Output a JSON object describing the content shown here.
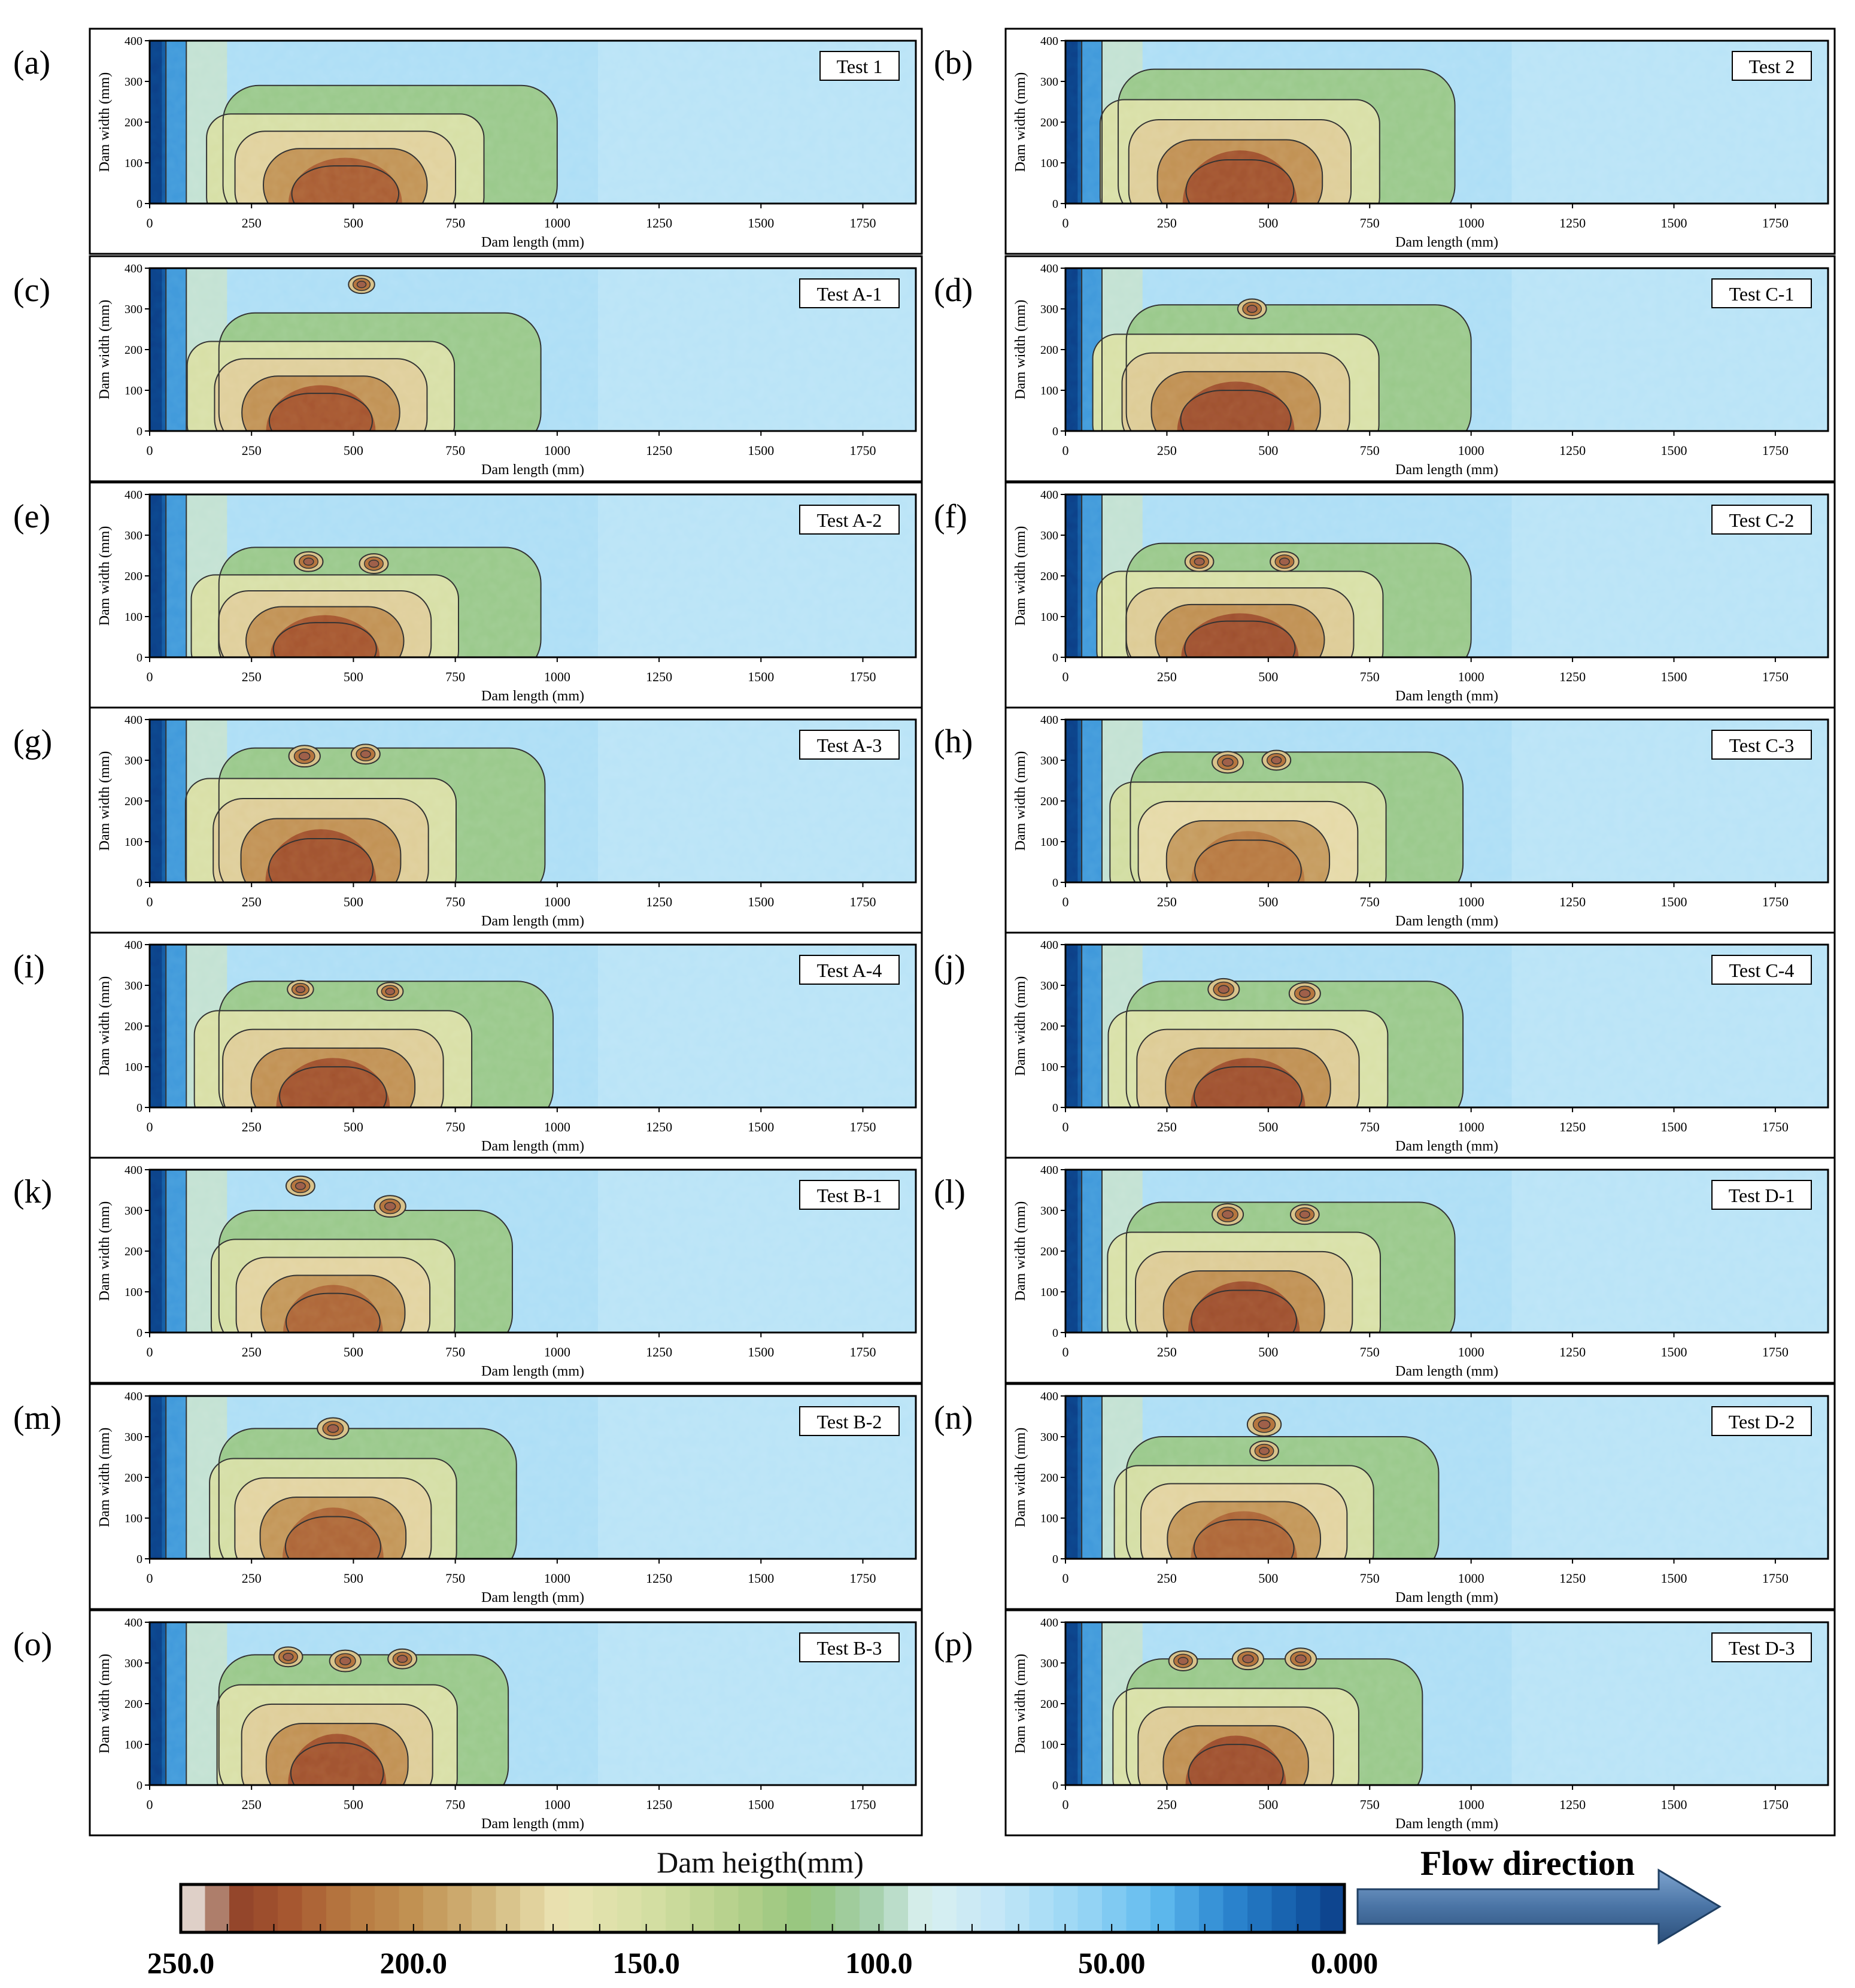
{
  "figure": {
    "colorbar": {
      "title": "Dam heigth(mm)",
      "tick_labels": [
        "250.0",
        "200.0",
        "150.0",
        "100.0",
        "50.00",
        "0.000"
      ],
      "tick_values": [
        250,
        200,
        150,
        100,
        50,
        0
      ],
      "range": [
        250,
        0
      ],
      "stops": [
        {
          "v": 250,
          "color": "#ffffff"
        },
        {
          "v": 245,
          "color": "#c1a596"
        },
        {
          "v": 238,
          "color": "#92452b"
        },
        {
          "v": 228,
          "color": "#a4532e"
        },
        {
          "v": 215,
          "color": "#b6763f"
        },
        {
          "v": 200,
          "color": "#c19253"
        },
        {
          "v": 185,
          "color": "#d1b57a"
        },
        {
          "v": 168,
          "color": "#ebe4b3"
        },
        {
          "v": 150,
          "color": "#d6dfa4"
        },
        {
          "v": 130,
          "color": "#b3d08a"
        },
        {
          "v": 115,
          "color": "#94c57e"
        },
        {
          "v": 100,
          "color": "#a9d2b4"
        },
        {
          "v": 90,
          "color": "#daf0f0"
        },
        {
          "v": 75,
          "color": "#c4e7f7"
        },
        {
          "v": 55,
          "color": "#94d4f4"
        },
        {
          "v": 40,
          "color": "#5fbaee"
        },
        {
          "v": 25,
          "color": "#2c86d0"
        },
        {
          "v": 10,
          "color": "#145ca8"
        },
        {
          "v": 0,
          "color": "#0c3d86"
        }
      ]
    },
    "flow_direction": {
      "label": "Flow direction",
      "color": "#4a74a5"
    }
  },
  "chart_data": [
    {
      "type": "heatmap",
      "panel": "(a)",
      "title": "Test 1",
      "xlabel": "Dam length (mm)",
      "ylabel": "Dam width (mm)",
      "xlim": [
        0,
        1880
      ],
      "ylim": [
        0,
        400
      ],
      "x_ticks": [
        0,
        250,
        500,
        750,
        1000,
        1250,
        1500,
        1750
      ],
      "y_ticks": [
        0,
        100,
        200,
        300,
        400
      ],
      "mound": {
        "x_start": 180,
        "x_end": 1000,
        "width_extent": 250,
        "peak_height": 225,
        "peak_x": 480
      },
      "bumps": [],
      "notes": "Contour map of dam height over the dam surface"
    },
    {
      "type": "heatmap",
      "panel": "(b)",
      "title": "Test 2",
      "xlabel": "Dam length (mm)",
      "ylabel": "Dam width (mm)",
      "xlim": [
        0,
        1880
      ],
      "ylim": [
        0,
        400
      ],
      "x_ticks": [
        0,
        250,
        500,
        750,
        1000,
        1250,
        1500,
        1750
      ],
      "y_ticks": [
        0,
        100,
        200,
        300,
        400
      ],
      "mound": {
        "x_start": 130,
        "x_end": 960,
        "width_extent": 290,
        "peak_height": 230,
        "peak_x": 430
      },
      "bumps": []
    },
    {
      "type": "heatmap",
      "panel": "(c)",
      "title": "Test A-1",
      "xlabel": "Dam length (mm)",
      "ylabel": "Dam width (mm)",
      "xlim": [
        0,
        1880
      ],
      "ylim": [
        0,
        400
      ],
      "x_ticks": [
        0,
        250,
        500,
        750,
        1000,
        1250,
        1500,
        1750
      ],
      "y_ticks": [
        0,
        100,
        200,
        300,
        400
      ],
      "mound": {
        "x_start": 170,
        "x_end": 960,
        "width_extent": 250,
        "peak_height": 228,
        "peak_x": 420
      },
      "bumps": [
        {
          "x": 520,
          "y": 360,
          "r": 20
        }
      ]
    },
    {
      "type": "heatmap",
      "panel": "(d)",
      "title": "Test C-1",
      "xlabel": "Dam length (mm)",
      "ylabel": "Dam width (mm)",
      "xlim": [
        0,
        1880
      ],
      "ylim": [
        0,
        400
      ],
      "x_ticks": [
        0,
        250,
        500,
        750,
        1000,
        1250,
        1500,
        1750
      ],
      "y_ticks": [
        0,
        100,
        200,
        300,
        400
      ],
      "mound": {
        "x_start": 150,
        "x_end": 1000,
        "width_extent": 270,
        "peak_height": 232,
        "peak_x": 420
      },
      "bumps": [
        {
          "x": 460,
          "y": 300,
          "r": 22
        }
      ]
    },
    {
      "type": "heatmap",
      "panel": "(e)",
      "title": "Test A-2",
      "xlabel": "Dam length (mm)",
      "ylabel": "Dam width (mm)",
      "xlim": [
        0,
        1880
      ],
      "ylim": [
        0,
        400
      ],
      "x_ticks": [
        0,
        250,
        500,
        750,
        1000,
        1250,
        1500,
        1750
      ],
      "y_ticks": [
        0,
        100,
        200,
        300,
        400
      ],
      "mound": {
        "x_start": 170,
        "x_end": 960,
        "width_extent": 230,
        "peak_height": 228,
        "peak_x": 430
      },
      "bumps": [
        {
          "x": 390,
          "y": 235,
          "r": 22
        },
        {
          "x": 550,
          "y": 230,
          "r": 22
        }
      ]
    },
    {
      "type": "heatmap",
      "panel": "(f)",
      "title": "Test C-2",
      "xlabel": "Dam length (mm)",
      "ylabel": "Dam width (mm)",
      "xlim": [
        0,
        1880
      ],
      "ylim": [
        0,
        400
      ],
      "x_ticks": [
        0,
        250,
        500,
        750,
        1000,
        1250,
        1500,
        1750
      ],
      "y_ticks": [
        0,
        100,
        200,
        300,
        400
      ],
      "mound": {
        "x_start": 150,
        "x_end": 1000,
        "width_extent": 240,
        "peak_height": 232,
        "peak_x": 430
      },
      "bumps": [
        {
          "x": 330,
          "y": 235,
          "r": 22
        },
        {
          "x": 540,
          "y": 235,
          "r": 22
        }
      ]
    },
    {
      "type": "heatmap",
      "panel": "(g)",
      "title": "Test A-3",
      "xlabel": "Dam length (mm)",
      "ylabel": "Dam width (mm)",
      "xlim": [
        0,
        1880
      ],
      "ylim": [
        0,
        400
      ],
      "x_ticks": [
        0,
        250,
        500,
        750,
        1000,
        1250,
        1500,
        1750
      ],
      "y_ticks": [
        0,
        100,
        200,
        300,
        400
      ],
      "mound": {
        "x_start": 170,
        "x_end": 970,
        "width_extent": 290,
        "peak_height": 230,
        "peak_x": 420
      },
      "bumps": [
        {
          "x": 380,
          "y": 310,
          "r": 24
        },
        {
          "x": 530,
          "y": 315,
          "r": 22
        }
      ]
    },
    {
      "type": "heatmap",
      "panel": "(h)",
      "title": "Test C-3",
      "xlabel": "Dam length (mm)",
      "ylabel": "Dam width (mm)",
      "xlim": [
        0,
        1880
      ],
      "ylim": [
        0,
        400
      ],
      "x_ticks": [
        0,
        250,
        500,
        750,
        1000,
        1250,
        1500,
        1750
      ],
      "y_ticks": [
        0,
        100,
        200,
        300,
        400
      ],
      "mound": {
        "x_start": 160,
        "x_end": 980,
        "width_extent": 280,
        "peak_height": 215,
        "peak_x": 450
      },
      "bumps": [
        {
          "x": 400,
          "y": 295,
          "r": 24
        },
        {
          "x": 520,
          "y": 300,
          "r": 22
        }
      ]
    },
    {
      "type": "heatmap",
      "panel": "(i)",
      "title": "Test A-4",
      "xlabel": "Dam length (mm)",
      "ylabel": "Dam width (mm)",
      "xlim": [
        0,
        1880
      ],
      "ylim": [
        0,
        400
      ],
      "x_ticks": [
        0,
        250,
        500,
        750,
        1000,
        1250,
        1500,
        1750
      ],
      "y_ticks": [
        0,
        100,
        200,
        300,
        400
      ],
      "mound": {
        "x_start": 170,
        "x_end": 990,
        "width_extent": 270,
        "peak_height": 230,
        "peak_x": 450
      },
      "bumps": [
        {
          "x": 370,
          "y": 290,
          "r": 20
        },
        {
          "x": 590,
          "y": 285,
          "r": 20
        }
      ]
    },
    {
      "type": "heatmap",
      "panel": "(j)",
      "title": "Test C-4",
      "xlabel": "Dam length (mm)",
      "ylabel": "Dam width (mm)",
      "xlim": [
        0,
        1880
      ],
      "ylim": [
        0,
        400
      ],
      "x_ticks": [
        0,
        250,
        500,
        750,
        1000,
        1250,
        1500,
        1750
      ],
      "y_ticks": [
        0,
        100,
        200,
        300,
        400
      ],
      "mound": {
        "x_start": 150,
        "x_end": 980,
        "width_extent": 270,
        "peak_height": 232,
        "peak_x": 450
      },
      "bumps": [
        {
          "x": 390,
          "y": 290,
          "r": 24
        },
        {
          "x": 590,
          "y": 280,
          "r": 24
        }
      ]
    },
    {
      "type": "heatmap",
      "panel": "(k)",
      "title": "Test B-1",
      "xlabel": "Dam length (mm)",
      "ylabel": "Dam width (mm)",
      "xlim": [
        0,
        1880
      ],
      "ylim": [
        0,
        400
      ],
      "x_ticks": [
        0,
        250,
        500,
        750,
        1000,
        1250,
        1500,
        1750
      ],
      "y_ticks": [
        0,
        100,
        200,
        300,
        400
      ],
      "mound": {
        "x_start": 170,
        "x_end": 890,
        "width_extent": 260,
        "peak_height": 222,
        "peak_x": 450
      },
      "bumps": [
        {
          "x": 370,
          "y": 360,
          "r": 22
        },
        {
          "x": 590,
          "y": 310,
          "r": 24
        }
      ]
    },
    {
      "type": "heatmap",
      "panel": "(l)",
      "title": "Test D-1",
      "xlabel": "Dam length (mm)",
      "ylabel": "Dam width (mm)",
      "xlim": [
        0,
        1880
      ],
      "ylim": [
        0,
        400
      ],
      "x_ticks": [
        0,
        250,
        500,
        750,
        1000,
        1250,
        1500,
        1750
      ],
      "y_ticks": [
        0,
        100,
        200,
        300,
        400
      ],
      "mound": {
        "x_start": 150,
        "x_end": 960,
        "width_extent": 280,
        "peak_height": 232,
        "peak_x": 440
      },
      "bumps": [
        {
          "x": 400,
          "y": 290,
          "r": 24
        },
        {
          "x": 590,
          "y": 290,
          "r": 22
        }
      ]
    },
    {
      "type": "heatmap",
      "panel": "(m)",
      "title": "Test B-2",
      "xlabel": "Dam length (mm)",
      "ylabel": "Dam width (mm)",
      "xlim": [
        0,
        1880
      ],
      "ylim": [
        0,
        400
      ],
      "x_ticks": [
        0,
        250,
        500,
        750,
        1000,
        1250,
        1500,
        1750
      ],
      "y_ticks": [
        0,
        100,
        200,
        300,
        400
      ],
      "mound": {
        "x_start": 170,
        "x_end": 900,
        "width_extent": 280,
        "peak_height": 222,
        "peak_x": 450
      },
      "bumps": [
        {
          "x": 450,
          "y": 320,
          "r": 24
        }
      ]
    },
    {
      "type": "heatmap",
      "panel": "(n)",
      "title": "Test D-2",
      "xlabel": "Dam length (mm)",
      "ylabel": "Dam width (mm)",
      "xlim": [
        0,
        1880
      ],
      "ylim": [
        0,
        400
      ],
      "x_ticks": [
        0,
        250,
        500,
        750,
        1000,
        1250,
        1500,
        1750
      ],
      "y_ticks": [
        0,
        100,
        200,
        300,
        400
      ],
      "mound": {
        "x_start": 150,
        "x_end": 920,
        "width_extent": 260,
        "peak_height": 222,
        "peak_x": 440
      },
      "bumps": [
        {
          "x": 490,
          "y": 330,
          "r": 26
        },
        {
          "x": 490,
          "y": 265,
          "r": 22
        }
      ]
    },
    {
      "type": "heatmap",
      "panel": "(o)",
      "title": "Test B-3",
      "xlabel": "Dam length (mm)",
      "ylabel": "Dam width (mm)",
      "xlim": [
        0,
        1880
      ],
      "ylim": [
        0,
        400
      ],
      "x_ticks": [
        0,
        250,
        500,
        750,
        1000,
        1250,
        1500,
        1750
      ],
      "y_ticks": [
        0,
        100,
        200,
        300,
        400
      ],
      "mound": {
        "x_start": 170,
        "x_end": 880,
        "width_extent": 280,
        "peak_height": 230,
        "peak_x": 460
      },
      "bumps": [
        {
          "x": 340,
          "y": 315,
          "r": 22
        },
        {
          "x": 480,
          "y": 305,
          "r": 24
        },
        {
          "x": 620,
          "y": 310,
          "r": 22
        }
      ]
    },
    {
      "type": "heatmap",
      "panel": "(p)",
      "title": "Test D-3",
      "xlabel": "Dam length (mm)",
      "ylabel": "Dam width (mm)",
      "xlim": [
        0,
        1880
      ],
      "ylim": [
        0,
        400
      ],
      "x_ticks": [
        0,
        250,
        500,
        750,
        1000,
        1250,
        1500,
        1750
      ],
      "y_ticks": [
        0,
        100,
        200,
        300,
        400
      ],
      "mound": {
        "x_start": 150,
        "x_end": 880,
        "width_extent": 270,
        "peak_height": 232,
        "peak_x": 420
      },
      "bumps": [
        {
          "x": 290,
          "y": 305,
          "r": 22
        },
        {
          "x": 450,
          "y": 310,
          "r": 24
        },
        {
          "x": 580,
          "y": 310,
          "r": 24
        }
      ]
    }
  ]
}
